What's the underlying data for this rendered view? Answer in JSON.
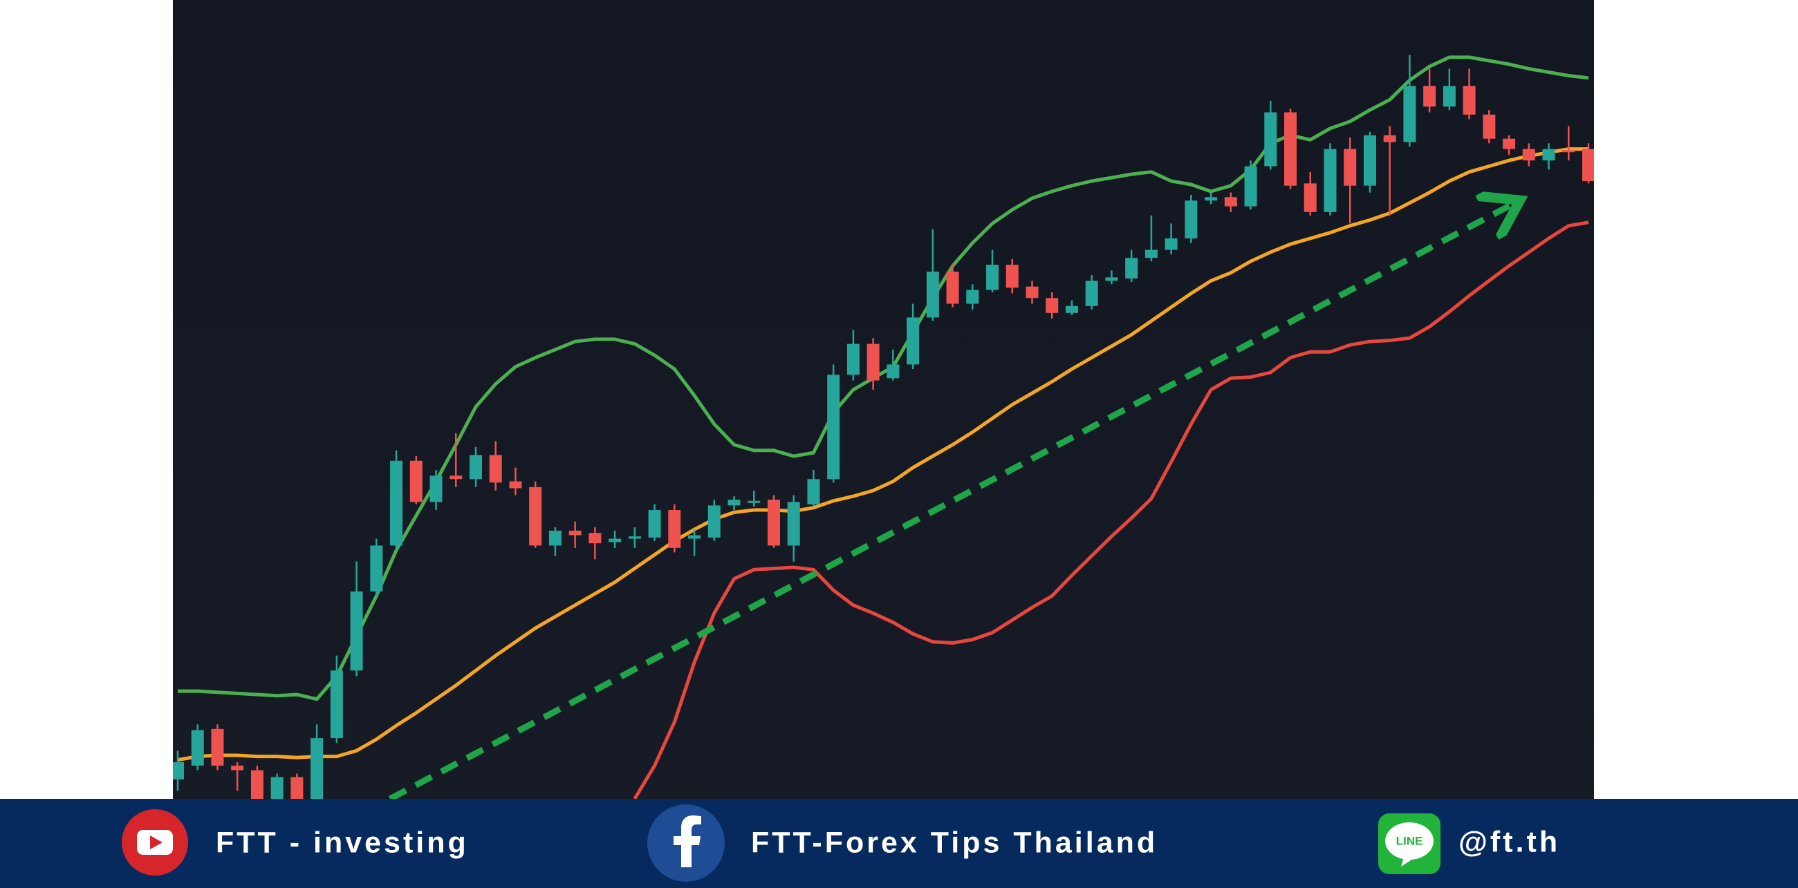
{
  "chart_data": {
    "type": "candlestick",
    "categories": [
      null,
      null,
      null,
      null,
      null,
      null,
      null,
      null,
      null,
      null,
      null,
      null,
      null,
      null,
      null,
      null,
      null,
      null,
      null,
      null,
      null,
      null,
      null,
      null,
      null,
      null,
      null,
      null,
      null,
      null,
      null,
      null,
      null,
      null,
      null,
      null,
      null,
      null,
      null,
      null,
      null,
      null,
      null,
      null,
      null,
      null,
      null,
      null,
      null,
      null,
      null,
      null,
      null,
      null,
      null,
      null,
      null,
      null,
      null,
      null,
      null,
      null,
      null,
      null,
      null,
      null,
      null,
      null,
      null,
      null,
      null,
      null
    ],
    "open": [
      17,
      29,
      61,
      29,
      25,
      0,
      19,
      0,
      53,
      112,
      181,
      221,
      295,
      259,
      282,
      279,
      300,
      277,
      272,
      221,
      234,
      232,
      224,
      227,
      228,
      252,
      227,
      228,
      256,
      259,
      261,
      221,
      257,
      279,
      370,
      397,
      367,
      379,
      420,
      460,
      432,
      444,
      466,
      447,
      437,
      424,
      430,
      452,
      454,
      472,
      479,
      489,
      522,
      525,
      517,
      552,
      599,
      537,
      512,
      567,
      535,
      579,
      573,
      622,
      604,
      622,
      597,
      576,
      567,
      557,
      566,
      567
    ],
    "high": [
      42,
      65,
      65,
      32,
      29,
      22,
      22,
      65,
      125,
      207,
      227,
      304,
      299,
      287,
      319,
      307,
      312,
      289,
      277,
      237,
      242,
      237,
      234,
      237,
      257,
      257,
      235,
      261,
      264,
      269,
      265,
      265,
      287,
      379,
      409,
      402,
      392,
      432,
      497,
      467,
      449,
      479,
      471,
      452,
      442,
      435,
      457,
      461,
      479,
      509,
      502,
      527,
      529,
      529,
      557,
      609,
      602,
      547,
      572,
      577,
      582,
      587,
      649,
      637,
      637,
      637,
      601,
      579,
      572,
      572,
      587,
      572
    ],
    "low": [
      7,
      25,
      25,
      7,
      0,
      0,
      0,
      0,
      49,
      107,
      177,
      217,
      257,
      252,
      272,
      272,
      269,
      265,
      219,
      212,
      219,
      209,
      219,
      219,
      225,
      215,
      212,
      225,
      252,
      255,
      219,
      207,
      255,
      276,
      365,
      357,
      365,
      375,
      417,
      429,
      427,
      442,
      441,
      432,
      419,
      422,
      427,
      449,
      451,
      469,
      475,
      485,
      519,
      512,
      514,
      549,
      532,
      509,
      509,
      502,
      529,
      509,
      569,
      599,
      601,
      593,
      572,
      562,
      552,
      549,
      557,
      537
    ],
    "close": [
      32,
      60,
      29,
      25,
      0,
      19,
      0,
      53,
      112,
      181,
      221,
      295,
      259,
      282,
      279,
      300,
      276,
      271,
      221,
      234,
      230,
      223,
      227,
      229,
      252,
      219,
      230,
      256,
      261,
      260,
      221,
      259,
      279,
      370,
      397,
      365,
      379,
      420,
      460,
      432,
      444,
      466,
      446,
      437,
      424,
      430,
      452,
      455,
      472,
      479,
      489,
      522,
      525,
      517,
      552,
      599,
      535,
      512,
      567,
      535,
      579,
      573,
      622,
      604,
      622,
      597,
      576,
      567,
      557,
      567,
      565,
      539
    ],
    "up_color": "#26a69a",
    "down_color": "#ef5350",
    "ylim": [
      0,
      697
    ],
    "bands": [
      {
        "color": "#4caf50",
        "values": [
          94,
          94,
          93,
          92,
          91,
          90,
          91,
          87,
          107,
          142,
          177,
          217,
          247,
          277,
          309,
          342,
          362,
          377,
          385,
          392,
          399,
          401,
          401,
          397,
          387,
          375,
          352,
          327,
          309,
          304,
          304,
          299,
          302,
          337,
          357,
          367,
          377,
          407,
          437,
          465,
          485,
          502,
          514,
          524,
          530,
          535,
          539,
          542,
          545,
          547,
          539,
          536,
          530,
          535,
          549,
          572,
          579,
          575,
          585,
          591,
          601,
          610,
          627,
          639,
          647,
          647,
          644,
          641,
          637,
          634,
          631,
          629
        ]
      },
      {
        "color": "#f5a524",
        "values": [
          34,
          37,
          38,
          38,
          37,
          37,
          36,
          37,
          37,
          42,
          52,
          64,
          75,
          87,
          99,
          112,
          125,
          137,
          149,
          159,
          169,
          179,
          189,
          201,
          213,
          225,
          235,
          244,
          250,
          252,
          252,
          251,
          254,
          260,
          264,
          269,
          277,
          289,
          299,
          309,
          320,
          332,
          344,
          354,
          364,
          375,
          385,
          395,
          405,
          417,
          429,
          441,
          452,
          459,
          469,
          477,
          484,
          489,
          494,
          500,
          505,
          511,
          520,
          529,
          539,
          547,
          552,
          557,
          561,
          564,
          567,
          567
        ]
      },
      {
        "color": "#e8473d",
        "values": [
          null,
          null,
          null,
          null,
          null,
          null,
          null,
          null,
          null,
          null,
          null,
          null,
          null,
          null,
          null,
          null,
          null,
          null,
          null,
          null,
          null,
          null,
          null,
          0,
          29,
          67,
          119,
          162,
          192,
          200,
          201,
          202,
          200,
          182,
          169,
          162,
          154,
          144,
          137,
          136,
          139,
          145,
          156,
          167,
          177,
          195,
          212,
          229,
          245,
          262,
          294,
          327,
          357,
          367,
          368,
          372,
          385,
          390,
          390,
          396,
          399,
          400,
          402,
          412,
          425,
          439,
          452,
          465,
          477,
          489,
          500,
          503
        ]
      }
    ]
  },
  "footer": {
    "youtube": "FTT - investing",
    "facebook": "FTT-Forex Tips Thailand",
    "line_icon": "LINE",
    "line": "@ft.th"
  }
}
